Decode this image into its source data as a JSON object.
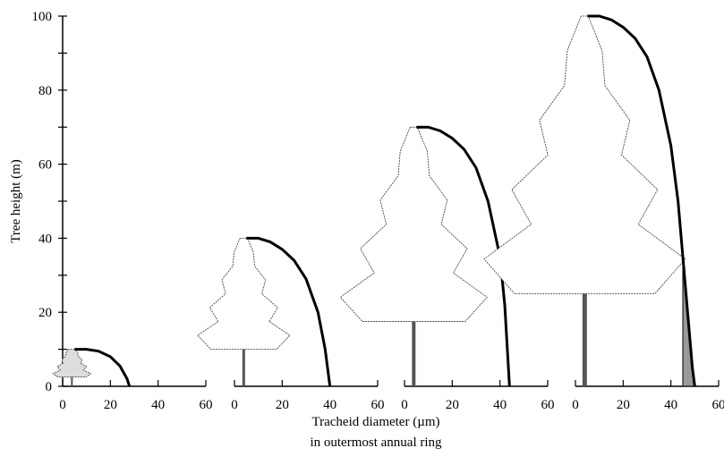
{
  "chart_data": [
    {
      "type": "line",
      "ylabel": "Tree height (m)",
      "x": [
        5,
        10,
        15,
        20,
        24,
        27,
        28
      ],
      "values": [
        10,
        10,
        9.5,
        8,
        5.5,
        2,
        0
      ],
      "color": "#000000",
      "xlim": [
        0,
        60
      ],
      "xticks": [
        0,
        20,
        40,
        60
      ],
      "ylim": [
        0,
        100
      ],
      "yticks": [
        0,
        20,
        40,
        60,
        80,
        100
      ],
      "yminorticks": [
        10,
        30,
        50,
        70,
        90
      ]
    },
    {
      "type": "line",
      "x": [
        5,
        10,
        15,
        20,
        25,
        30,
        35,
        38,
        40
      ],
      "values": [
        40,
        40,
        39,
        37,
        34,
        29,
        20,
        10,
        0
      ],
      "color": "#000000",
      "xlim": [
        0,
        60
      ],
      "xticks": [
        0,
        20,
        40,
        60
      ],
      "ylim": [
        0,
        100
      ]
    },
    {
      "type": "line",
      "x": [
        5,
        10,
        15,
        20,
        25,
        30,
        35,
        40,
        42,
        44
      ],
      "values": [
        70,
        70,
        69,
        67,
        64,
        59,
        50,
        35,
        22,
        0
      ],
      "color": "#000000",
      "xlim": [
        0,
        60
      ],
      "xticks": [
        0,
        20,
        40,
        60
      ],
      "ylim": [
        0,
        100
      ]
    },
    {
      "type": "line",
      "x": [
        5,
        10,
        15,
        20,
        25,
        30,
        35,
        40,
        43,
        45,
        47,
        49,
        50
      ],
      "values": [
        100,
        100,
        99,
        97,
        94,
        89,
        80,
        65,
        50,
        35,
        20,
        5,
        0
      ],
      "color": "#000000",
      "xlim": [
        0,
        60
      ],
      "xticks": [
        0,
        20,
        40,
        60
      ],
      "ylim": [
        0,
        100
      ],
      "shade_from_x": 45,
      "shade_color": "#999999"
    }
  ],
  "xlabel": [
    "Tracheid diameter (µm)",
    "in outermost annual ring"
  ]
}
